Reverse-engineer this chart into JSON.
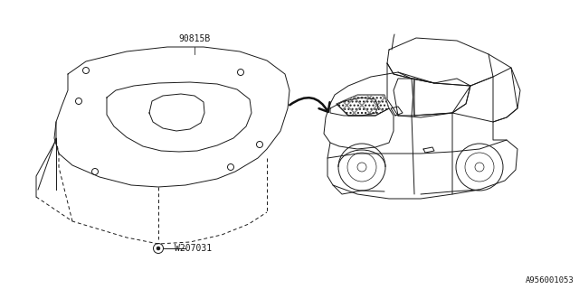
{
  "bg_color": "#ffffff",
  "part_label_1": "90815B",
  "part_label_2": "W207031",
  "diagram_id": "A956001053",
  "line_color": "#1a1a1a",
  "text_color": "#1a1a1a"
}
